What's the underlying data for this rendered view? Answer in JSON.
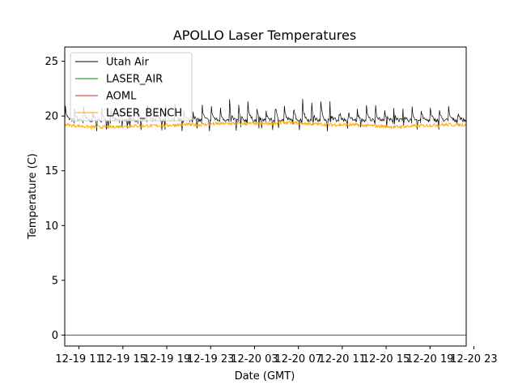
{
  "chart_data": {
    "type": "line",
    "title": "APOLLO Laser Temperatures",
    "xlabel": "Date (GMT)",
    "ylabel": "Temperature (C)",
    "xlim": [
      9.7,
      46.3
    ],
    "ylim": [
      -1,
      26.3
    ],
    "x_ticks": [
      {
        "value": 11,
        "label": "12-19 11"
      },
      {
        "value": 15,
        "label": "12-19 15"
      },
      {
        "value": 19,
        "label": "12-19 19"
      },
      {
        "value": 23,
        "label": "12-19 23"
      },
      {
        "value": 27,
        "label": "12-20 03"
      },
      {
        "value": 31,
        "label": "12-20 07"
      },
      {
        "value": 35,
        "label": "12-20 11"
      },
      {
        "value": 39,
        "label": "12-20 15"
      },
      {
        "value": 43,
        "label": "12-20 19"
      },
      {
        "value": 47,
        "label": "12-20 23"
      }
    ],
    "y_ticks": [
      0,
      5,
      10,
      15,
      20,
      25
    ],
    "legend_position": "top-left",
    "series": [
      {
        "name": "Utah Air",
        "color": "#000000",
        "x_start": 9.7,
        "x_end": 46.3,
        "baseline": 19.6,
        "cycle_hours": 0.83,
        "spike_peaks": [
          21.0,
          20.6,
          20.8,
          20.4,
          20.9,
          20.5,
          20.6,
          20.4,
          20.7,
          20.9,
          20.6,
          20.9,
          21.0,
          20.6,
          20.5,
          20.9,
          21.0,
          20.8,
          21.4,
          20.9,
          21.5,
          20.8,
          20.6,
          21.4,
          20.9,
          21.2,
          21.6,
          21.3,
          21.5,
          21.2,
          20.9,
          20.8,
          20.6,
          20.9,
          21.0,
          20.7,
          20.8,
          20.5,
          20.9,
          20.6,
          20.7,
          20.6,
          20.9,
          20.8
        ]
      },
      {
        "name": "LASER_AIR",
        "color": "#008000",
        "x": [],
        "y": []
      },
      {
        "name": "AOML",
        "color": "#d62728",
        "x": [
          9.7,
          46.3
        ],
        "y": [
          0,
          0
        ]
      },
      {
        "name": "LASER_BENCH",
        "color": "#ffa500",
        "x": [
          9.7,
          12,
          14,
          16,
          18,
          20,
          22,
          24,
          26,
          28,
          30,
          32,
          34,
          36,
          38,
          40,
          42,
          44,
          46.3
        ],
        "y": [
          19.2,
          19.0,
          19.0,
          19.1,
          19.1,
          19.2,
          19.2,
          19.3,
          19.3,
          19.3,
          19.4,
          19.3,
          19.2,
          19.2,
          19.1,
          19.0,
          19.1,
          19.2,
          19.2
        ]
      }
    ]
  }
}
